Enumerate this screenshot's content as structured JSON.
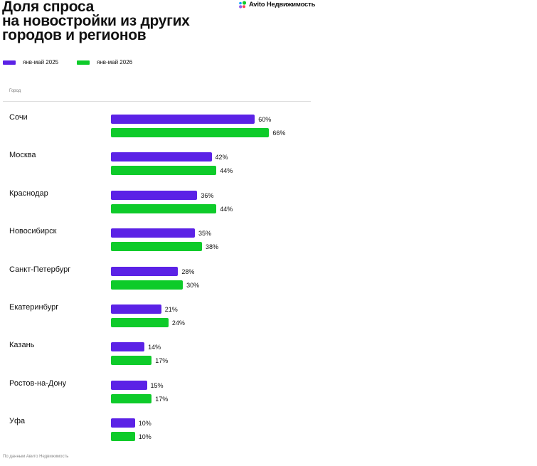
{
  "title_lines": [
    "Доля спроса",
    "на новостройки из других",
    "городов и регионов"
  ],
  "logo": {
    "icon": "avito-dots-icon",
    "text": "Avito Недвижимость"
  },
  "colors": {
    "series_2025": "#5b22e6",
    "series_2026": "#0ecb2a"
  },
  "chart_data": {
    "type": "bar",
    "orientation": "horizontal",
    "column_header": "Город",
    "categories": [
      "Сочи",
      "Москва",
      "Краснодар",
      "Новосибирск",
      "Санкт-Петербург",
      "Екатеринбург",
      "Казань",
      "Ростов-на-Дону",
      "Уфа"
    ],
    "series": [
      {
        "name": "янв-май 2025",
        "values": [
          60,
          42,
          36,
          35,
          28,
          21,
          14,
          15,
          10
        ],
        "labels": [
          "60%",
          "42%",
          "36%",
          "35%",
          "28%",
          "21%",
          "14%",
          "15%",
          "10%"
        ]
      },
      {
        "name": "янв-май 2026",
        "values": [
          66,
          44,
          44,
          38,
          30,
          24,
          17,
          17,
          10
        ],
        "labels": [
          "66%",
          "44%",
          "44%",
          "38%",
          "30%",
          "24%",
          "17%",
          "17%",
          "10%"
        ]
      }
    ],
    "unit": "%",
    "legend_position": "top-left",
    "grid": false
  },
  "source": "По данным Авито Недвижимость"
}
